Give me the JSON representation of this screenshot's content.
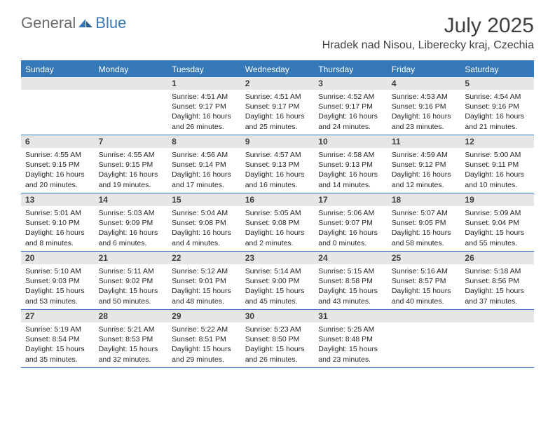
{
  "brand": {
    "part1": "General",
    "part2": "Blue"
  },
  "title": "July 2025",
  "location": "Hradek nad Nisou, Liberecky kraj, Czechia",
  "colors": {
    "accent": "#3579b8",
    "daynum_bg": "#e6e6e6",
    "text": "#404040",
    "body_text": "#262626",
    "logo_gray": "#6b6b6b",
    "logo_blue": "#3a78b5",
    "background": "#ffffff"
  },
  "weekdays": [
    "Sunday",
    "Monday",
    "Tuesday",
    "Wednesday",
    "Thursday",
    "Friday",
    "Saturday"
  ],
  "weeks": [
    [
      null,
      null,
      {
        "n": "1",
        "sr": "Sunrise: 4:51 AM",
        "ss": "Sunset: 9:17 PM",
        "dl": "Daylight: 16 hours and 26 minutes."
      },
      {
        "n": "2",
        "sr": "Sunrise: 4:51 AM",
        "ss": "Sunset: 9:17 PM",
        "dl": "Daylight: 16 hours and 25 minutes."
      },
      {
        "n": "3",
        "sr": "Sunrise: 4:52 AM",
        "ss": "Sunset: 9:17 PM",
        "dl": "Daylight: 16 hours and 24 minutes."
      },
      {
        "n": "4",
        "sr": "Sunrise: 4:53 AM",
        "ss": "Sunset: 9:16 PM",
        "dl": "Daylight: 16 hours and 23 minutes."
      },
      {
        "n": "5",
        "sr": "Sunrise: 4:54 AM",
        "ss": "Sunset: 9:16 PM",
        "dl": "Daylight: 16 hours and 21 minutes."
      }
    ],
    [
      {
        "n": "6",
        "sr": "Sunrise: 4:55 AM",
        "ss": "Sunset: 9:15 PM",
        "dl": "Daylight: 16 hours and 20 minutes."
      },
      {
        "n": "7",
        "sr": "Sunrise: 4:55 AM",
        "ss": "Sunset: 9:15 PM",
        "dl": "Daylight: 16 hours and 19 minutes."
      },
      {
        "n": "8",
        "sr": "Sunrise: 4:56 AM",
        "ss": "Sunset: 9:14 PM",
        "dl": "Daylight: 16 hours and 17 minutes."
      },
      {
        "n": "9",
        "sr": "Sunrise: 4:57 AM",
        "ss": "Sunset: 9:13 PM",
        "dl": "Daylight: 16 hours and 16 minutes."
      },
      {
        "n": "10",
        "sr": "Sunrise: 4:58 AM",
        "ss": "Sunset: 9:13 PM",
        "dl": "Daylight: 16 hours and 14 minutes."
      },
      {
        "n": "11",
        "sr": "Sunrise: 4:59 AM",
        "ss": "Sunset: 9:12 PM",
        "dl": "Daylight: 16 hours and 12 minutes."
      },
      {
        "n": "12",
        "sr": "Sunrise: 5:00 AM",
        "ss": "Sunset: 9:11 PM",
        "dl": "Daylight: 16 hours and 10 minutes."
      }
    ],
    [
      {
        "n": "13",
        "sr": "Sunrise: 5:01 AM",
        "ss": "Sunset: 9:10 PM",
        "dl": "Daylight: 16 hours and 8 minutes."
      },
      {
        "n": "14",
        "sr": "Sunrise: 5:03 AM",
        "ss": "Sunset: 9:09 PM",
        "dl": "Daylight: 16 hours and 6 minutes."
      },
      {
        "n": "15",
        "sr": "Sunrise: 5:04 AM",
        "ss": "Sunset: 9:08 PM",
        "dl": "Daylight: 16 hours and 4 minutes."
      },
      {
        "n": "16",
        "sr": "Sunrise: 5:05 AM",
        "ss": "Sunset: 9:08 PM",
        "dl": "Daylight: 16 hours and 2 minutes."
      },
      {
        "n": "17",
        "sr": "Sunrise: 5:06 AM",
        "ss": "Sunset: 9:07 PM",
        "dl": "Daylight: 16 hours and 0 minutes."
      },
      {
        "n": "18",
        "sr": "Sunrise: 5:07 AM",
        "ss": "Sunset: 9:05 PM",
        "dl": "Daylight: 15 hours and 58 minutes."
      },
      {
        "n": "19",
        "sr": "Sunrise: 5:09 AM",
        "ss": "Sunset: 9:04 PM",
        "dl": "Daylight: 15 hours and 55 minutes."
      }
    ],
    [
      {
        "n": "20",
        "sr": "Sunrise: 5:10 AM",
        "ss": "Sunset: 9:03 PM",
        "dl": "Daylight: 15 hours and 53 minutes."
      },
      {
        "n": "21",
        "sr": "Sunrise: 5:11 AM",
        "ss": "Sunset: 9:02 PM",
        "dl": "Daylight: 15 hours and 50 minutes."
      },
      {
        "n": "22",
        "sr": "Sunrise: 5:12 AM",
        "ss": "Sunset: 9:01 PM",
        "dl": "Daylight: 15 hours and 48 minutes."
      },
      {
        "n": "23",
        "sr": "Sunrise: 5:14 AM",
        "ss": "Sunset: 9:00 PM",
        "dl": "Daylight: 15 hours and 45 minutes."
      },
      {
        "n": "24",
        "sr": "Sunrise: 5:15 AM",
        "ss": "Sunset: 8:58 PM",
        "dl": "Daylight: 15 hours and 43 minutes."
      },
      {
        "n": "25",
        "sr": "Sunrise: 5:16 AM",
        "ss": "Sunset: 8:57 PM",
        "dl": "Daylight: 15 hours and 40 minutes."
      },
      {
        "n": "26",
        "sr": "Sunrise: 5:18 AM",
        "ss": "Sunset: 8:56 PM",
        "dl": "Daylight: 15 hours and 37 minutes."
      }
    ],
    [
      {
        "n": "27",
        "sr": "Sunrise: 5:19 AM",
        "ss": "Sunset: 8:54 PM",
        "dl": "Daylight: 15 hours and 35 minutes."
      },
      {
        "n": "28",
        "sr": "Sunrise: 5:21 AM",
        "ss": "Sunset: 8:53 PM",
        "dl": "Daylight: 15 hours and 32 minutes."
      },
      {
        "n": "29",
        "sr": "Sunrise: 5:22 AM",
        "ss": "Sunset: 8:51 PM",
        "dl": "Daylight: 15 hours and 29 minutes."
      },
      {
        "n": "30",
        "sr": "Sunrise: 5:23 AM",
        "ss": "Sunset: 8:50 PM",
        "dl": "Daylight: 15 hours and 26 minutes."
      },
      {
        "n": "31",
        "sr": "Sunrise: 5:25 AM",
        "ss": "Sunset: 8:48 PM",
        "dl": "Daylight: 15 hours and 23 minutes."
      },
      null,
      null
    ]
  ]
}
